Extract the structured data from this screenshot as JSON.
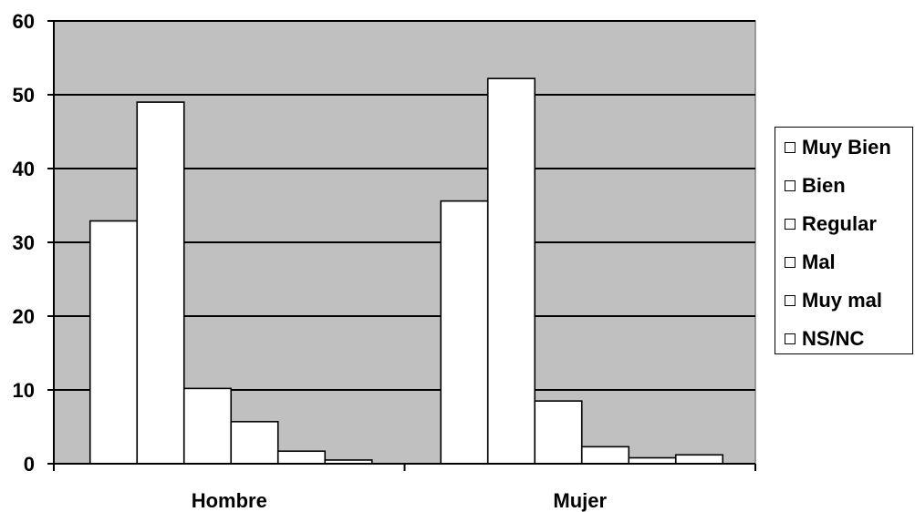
{
  "chart_data": {
    "type": "bar",
    "categories": [
      "Hombre",
      "Mujer"
    ],
    "series": [
      {
        "name": "Muy Bien",
        "values": [
          32.9,
          35.6
        ]
      },
      {
        "name": "Bien",
        "values": [
          49.0,
          52.2
        ]
      },
      {
        "name": "Regular",
        "values": [
          10.2,
          8.5
        ]
      },
      {
        "name": "Mal",
        "values": [
          5.7,
          2.3
        ]
      },
      {
        "name": "Muy mal",
        "values": [
          1.7,
          0.8
        ]
      },
      {
        "name": "NS/NC",
        "values": [
          0.5,
          1.2
        ]
      }
    ],
    "yticks": [
      "0",
      "10",
      "20",
      "30",
      "40",
      "50",
      "60"
    ],
    "ylim": [
      0,
      60
    ],
    "grid": true,
    "legend_position": "right",
    "colors": {
      "plot_background": "#c0c0c0",
      "bar_fill": "#ffffff",
      "stroke": "#000000"
    }
  }
}
